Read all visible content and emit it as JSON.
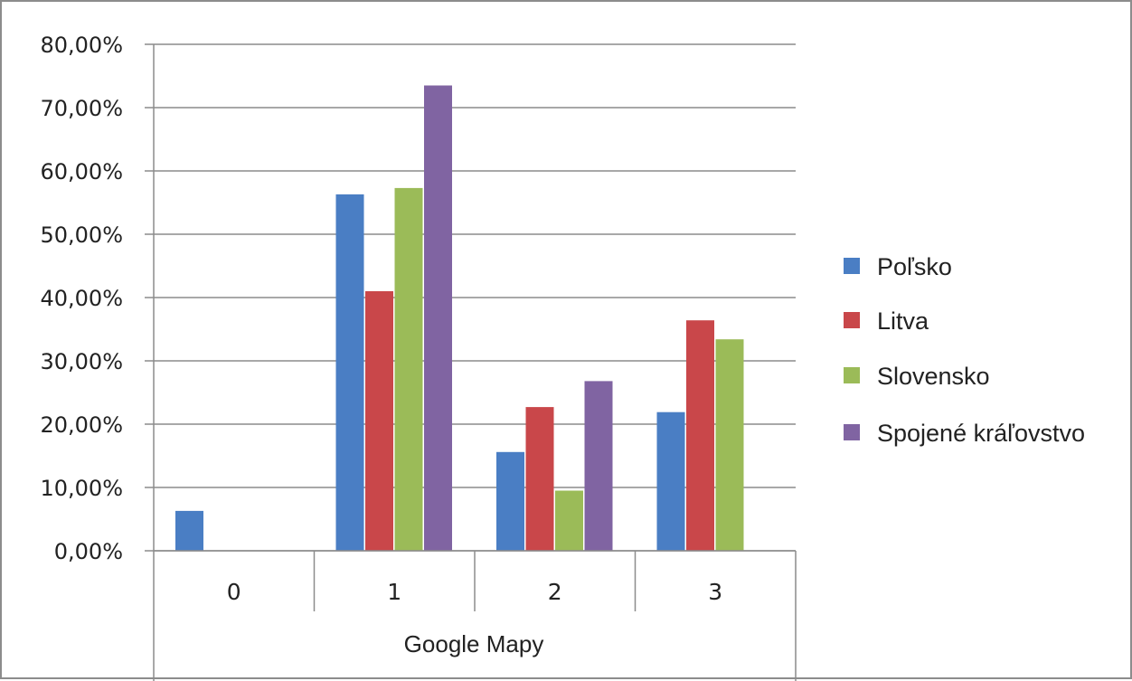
{
  "chart_data": {
    "type": "bar",
    "title": "",
    "xlabel": "Google Mapy",
    "ylabel": "",
    "categories": [
      "0",
      "1",
      "2",
      "3"
    ],
    "ylim": [
      0,
      80
    ],
    "y_ticks": [
      "0,00%",
      "10,00%",
      "20,00%",
      "30,00%",
      "40,00%",
      "50,00%",
      "60,00%",
      "70,00%",
      "80,00%"
    ],
    "y_tick_values": [
      0,
      10,
      20,
      30,
      40,
      50,
      60,
      70,
      80
    ],
    "grid": true,
    "legend_position": "right",
    "series": [
      {
        "name": "Poľsko",
        "color": "#4a7ec4",
        "values": [
          6.3,
          56.3,
          15.6,
          21.9
        ]
      },
      {
        "name": "Litva",
        "color": "#c9474a",
        "values": [
          0,
          41.0,
          22.7,
          36.4
        ]
      },
      {
        "name": "Slovensko",
        "color": "#9bbb58",
        "values": [
          0,
          57.3,
          9.5,
          33.4
        ]
      },
      {
        "name": "Spojené kráľovstvo",
        "color": "#8064a2",
        "values": [
          0,
          73.5,
          26.8,
          0
        ]
      }
    ]
  }
}
